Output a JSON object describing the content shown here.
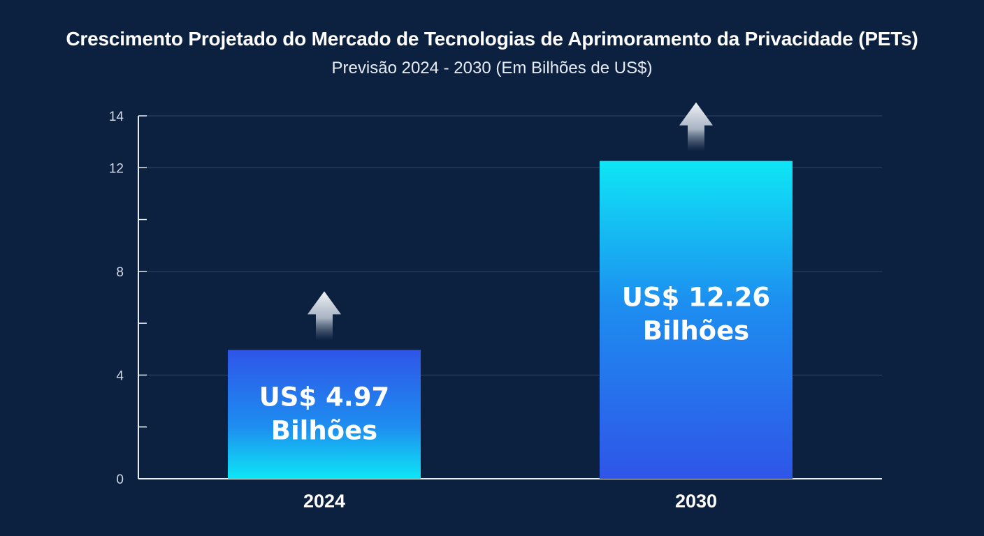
{
  "chart_data": {
    "type": "bar",
    "title": "Crescimento Projetado do Mercado de Tecnologias de Aprimoramento da Privacidade (PETs)",
    "subtitle": "Previsão 2024 - 2030 (Em Bilhões de US$)",
    "categories": [
      "2024",
      "2030"
    ],
    "values": [
      4.97,
      12.26
    ],
    "value_labels": [
      [
        "US$ 4.97",
        "Bilhões"
      ],
      [
        "US$ 12.26",
        "Bilhões"
      ]
    ],
    "y_ticks": [
      0,
      4,
      8,
      12,
      14
    ],
    "ylim": [
      0,
      14
    ],
    "grid": true,
    "colors": {
      "background": "#0c2140",
      "bar_blue": "#2f55e8",
      "bar_cyan": "#0ee6f5",
      "gridline": "#2e4766",
      "axis": "#e8edf3"
    }
  }
}
